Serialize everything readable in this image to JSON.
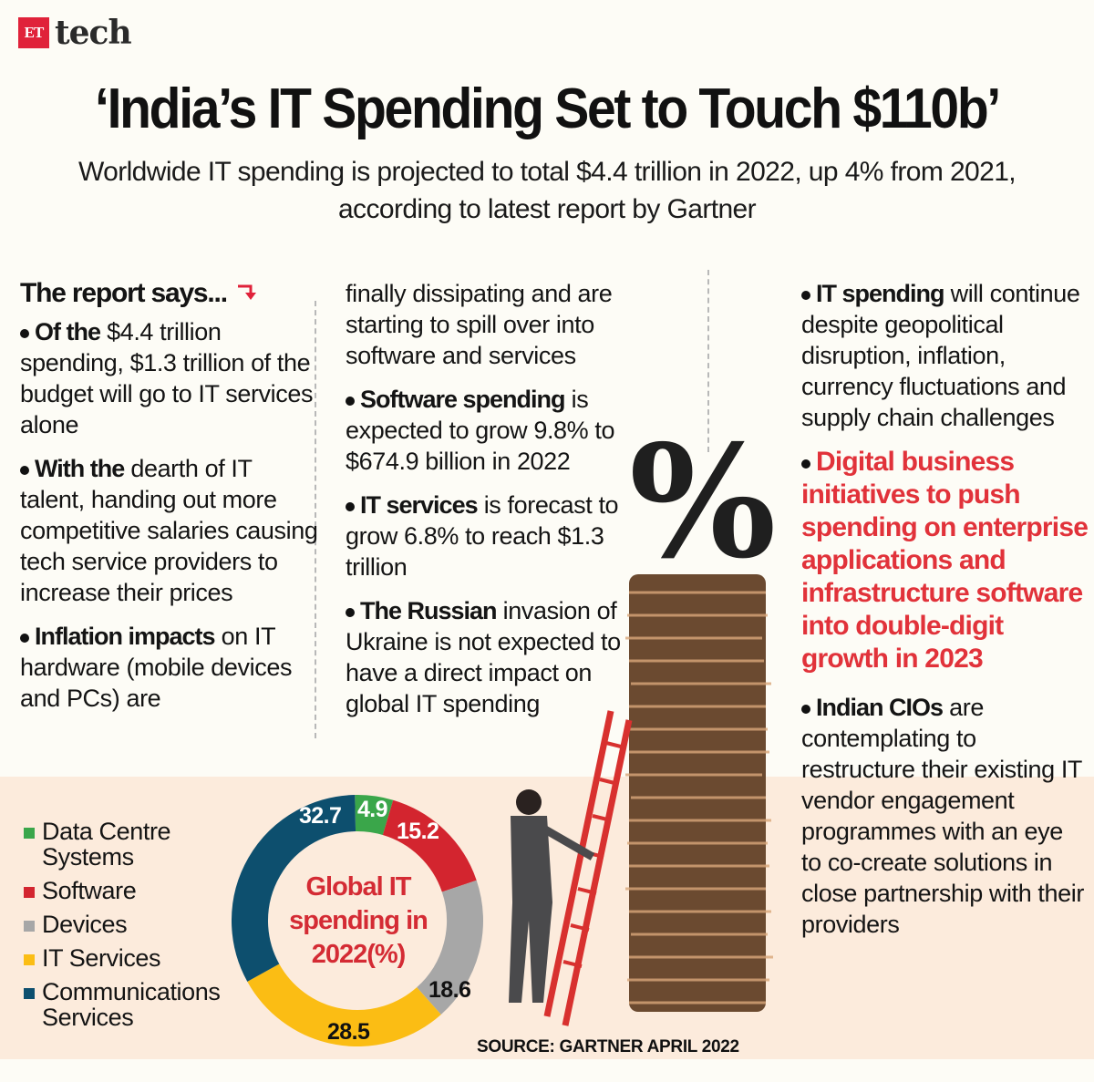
{
  "brand": {
    "logo_mark": "ET",
    "logo_word": "tech",
    "accent": "#e0223a"
  },
  "header": {
    "title": "‘India’s IT Spending Set to Touch $110b’",
    "subtitle": "Worldwide IT spending is projected to total $4.4 trillion in 2022, up 4% from 2021, according to latest report by Gartner"
  },
  "report": {
    "heading": "The report says...",
    "heading_icon": "red-down-right-arrow-icon",
    "items": [
      {
        "bold": "Of the",
        "text": " $4.4 trillion spending, $1.3 trillion of the budget will go to IT services alone"
      },
      {
        "bold": "With the",
        "text": " dearth of IT talent, handing out more competitive salaries causing tech service providers to increase their prices"
      },
      {
        "bold": "Inflation impacts",
        "text": " on IT hardware (mobile devices and PCs) are"
      },
      {
        "bold": "",
        "text": "finally dissipating and are starting to spill over into  software and services"
      },
      {
        "bold": "Software spending",
        "text": " is expected to grow 9.8% to $674.9 billion in 2022"
      },
      {
        "bold": "IT services",
        "text": " is forecast to grow 6.8% to reach $1.3 trillion"
      },
      {
        "bold": "The Russian",
        "text": " invasion of Ukraine is not expected to have a direct impact on global IT spending"
      },
      {
        "bold": "IT spending",
        "text": " will continue  despite geopolitical disruption, inflation, currency fluctuations and supply chain challenges"
      },
      {
        "highlight": "Digital business initiatives to push spending on enterprise applications and infrastructure software into double-digit growth in 2023"
      },
      {
        "bold": "Indian CIOs",
        "text": " are contemplating to restructure their existing IT vendor engagement programmes with an eye to co-create solutions in close partnership with their providers"
      }
    ]
  },
  "chart_data": {
    "type": "pie",
    "variant": "donut",
    "title": "Global IT spending in 2022(%)",
    "categories": [
      "Data Centre Systems",
      "Software",
      "Devices",
      "IT Services",
      "Communications Services"
    ],
    "values": [
      4.9,
      15.2,
      18.6,
      28.5,
      32.7
    ],
    "colors": [
      "#3aa64a",
      "#d3252f",
      "#a7a7a7",
      "#fbbd14",
      "#0d4f6e"
    ],
    "label_colors": [
      "#ffffff",
      "#ffffff",
      "#111111",
      "#111111",
      "#ffffff"
    ],
    "legend_position": "left",
    "source": "SOURCE: GARTNER APRIL 2022"
  },
  "legend": [
    {
      "label": "Data Centre Systems",
      "color": "#3aa64a"
    },
    {
      "label": "Software",
      "color": "#d3252f"
    },
    {
      "label": "Devices",
      "color": "#a7a7a7"
    },
    {
      "label": "IT Services",
      "color": "#fbbd14"
    },
    {
      "label": "Communications Services",
      "color": "#0d4f6e"
    }
  ],
  "donut_labels": {
    "dcs": "4.9",
    "software": "15.2",
    "devices": "18.6",
    "it_services": "28.5",
    "comm": "32.7"
  },
  "donut_center": "Global IT spending in 2022(%)",
  "source": "SOURCE: GARTNER APRIL 2022",
  "illustration": {
    "percent_glyph": "%",
    "description": "businessman climbing red ladder against tall coin stack topped by percent sign"
  }
}
